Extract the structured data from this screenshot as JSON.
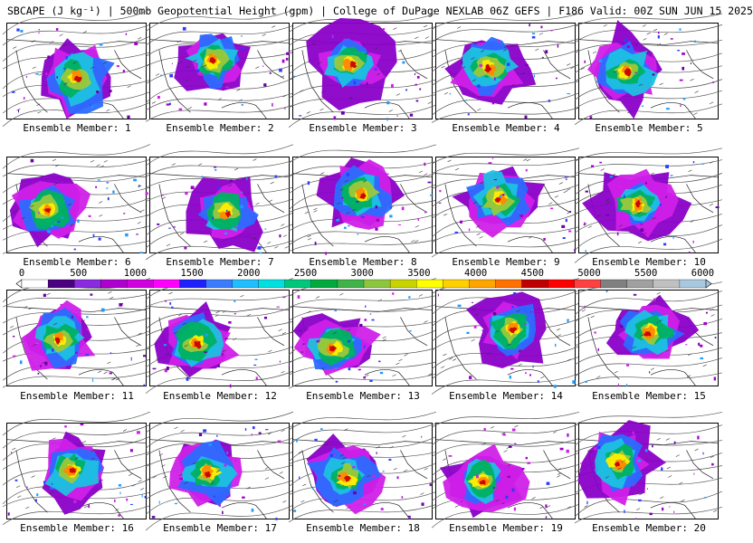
{
  "header": {
    "title": "SBCAPE (J kg⁻¹) | 500mb Geopotential Height (gpm) | College of DuPage NEXLAB 06Z GEFS | F186 Valid: 00Z SUN JUN 15 2025"
  },
  "members": [
    {
      "label": "Ensemble Member: 1"
    },
    {
      "label": "Ensemble Member: 2"
    },
    {
      "label": "Ensemble Member: 3"
    },
    {
      "label": "Ensemble Member: 4"
    },
    {
      "label": "Ensemble Member: 5"
    },
    {
      "label": "Ensemble Member: 6"
    },
    {
      "label": "Ensemble Member: 7"
    },
    {
      "label": "Ensemble Member: 8"
    },
    {
      "label": "Ensemble Member: 9"
    },
    {
      "label": "Ensemble Member: 10"
    },
    {
      "label": "Ensemble Member: 11"
    },
    {
      "label": "Ensemble Member: 12"
    },
    {
      "label": "Ensemble Member: 13"
    },
    {
      "label": "Ensemble Member: 14"
    },
    {
      "label": "Ensemble Member: 15"
    },
    {
      "label": "Ensemble Member: 16"
    },
    {
      "label": "Ensemble Member: 17"
    },
    {
      "label": "Ensemble Member: 18"
    },
    {
      "label": "Ensemble Member: 19"
    },
    {
      "label": "Ensemble Member: 20"
    }
  ],
  "colorbar": {
    "ticks": [
      "0",
      "500",
      "1000",
      "1500",
      "2000",
      "2500",
      "3000",
      "3500",
      "4000",
      "4500",
      "5000",
      "5500",
      "6000"
    ],
    "colors": [
      "#ffffff",
      "#4b0082",
      "#8a2be2",
      "#b000d0",
      "#d000e0",
      "#ff00ff",
      "#2020ff",
      "#3a7cff",
      "#1fbfff",
      "#00e0e0",
      "#00c87a",
      "#00aa3c",
      "#3fb24a",
      "#8cc63f",
      "#c8d400",
      "#ffff00",
      "#ffd000",
      "#ffa500",
      "#ff7000",
      "#c00000",
      "#ff0000",
      "#ff4040",
      "#808080",
      "#a0a0a0",
      "#c0c0c0",
      "#a8c8e0"
    ]
  }
}
